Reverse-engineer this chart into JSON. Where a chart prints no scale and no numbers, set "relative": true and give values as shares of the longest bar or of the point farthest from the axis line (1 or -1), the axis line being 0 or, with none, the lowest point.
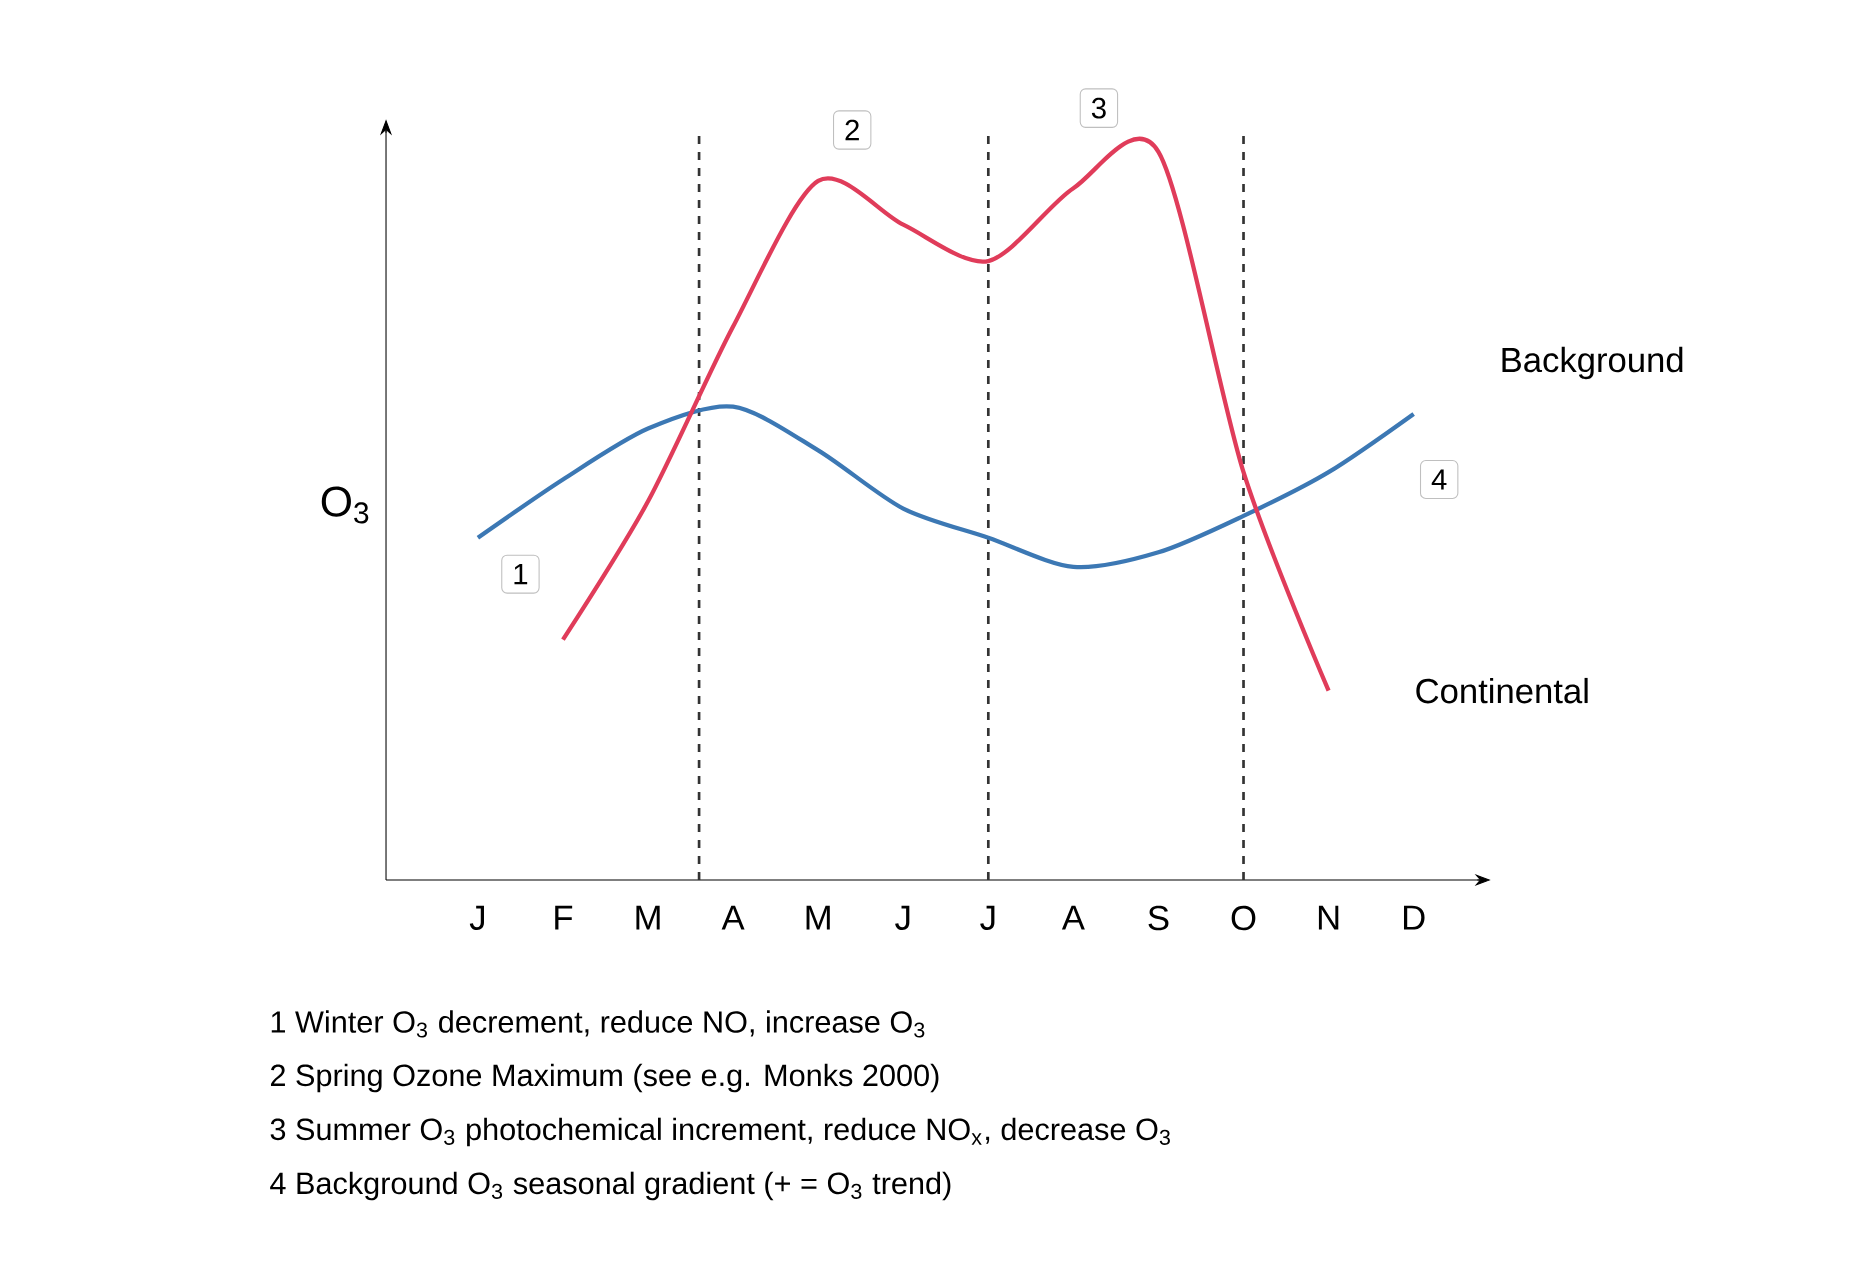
{
  "chart_data": {
    "type": "line",
    "relative": true,
    "ylabel": "O$_{3}$",
    "categories": [
      "J",
      "F",
      "M",
      "A",
      "M",
      "J",
      "J",
      "A",
      "S",
      "O",
      "N",
      "D"
    ],
    "series": [
      {
        "name": "Background",
        "color": "#3c78b4",
        "values": [
          0.47,
          0.55,
          0.62,
          0.65,
          0.59,
          0.51,
          0.47,
          0.43,
          0.45,
          0.5,
          0.56,
          0.64
        ]
      },
      {
        "name": "Continental",
        "color": "#e03c5a",
        "values": [
          null,
          0.33,
          0.52,
          0.76,
          0.96,
          0.9,
          0.85,
          0.95,
          1.0,
          0.56,
          0.26,
          null
        ]
      }
    ],
    "annotations": [
      "1",
      "2",
      "3",
      "4",
      "1 Winter O$_{3}$ decrement, reduce NO, increase O$_{3}$",
      "2 Spring Ozone Maximum (see e.g. Monks 2000)",
      "3 Summer O$_{3}$ photochemical increment, reduce NO$_{x}$, decrease O$_{3}$",
      "4 Background O$_{3}$ seasonal gradient (+ = O$_{3}$ trend)"
    ]
  }
}
